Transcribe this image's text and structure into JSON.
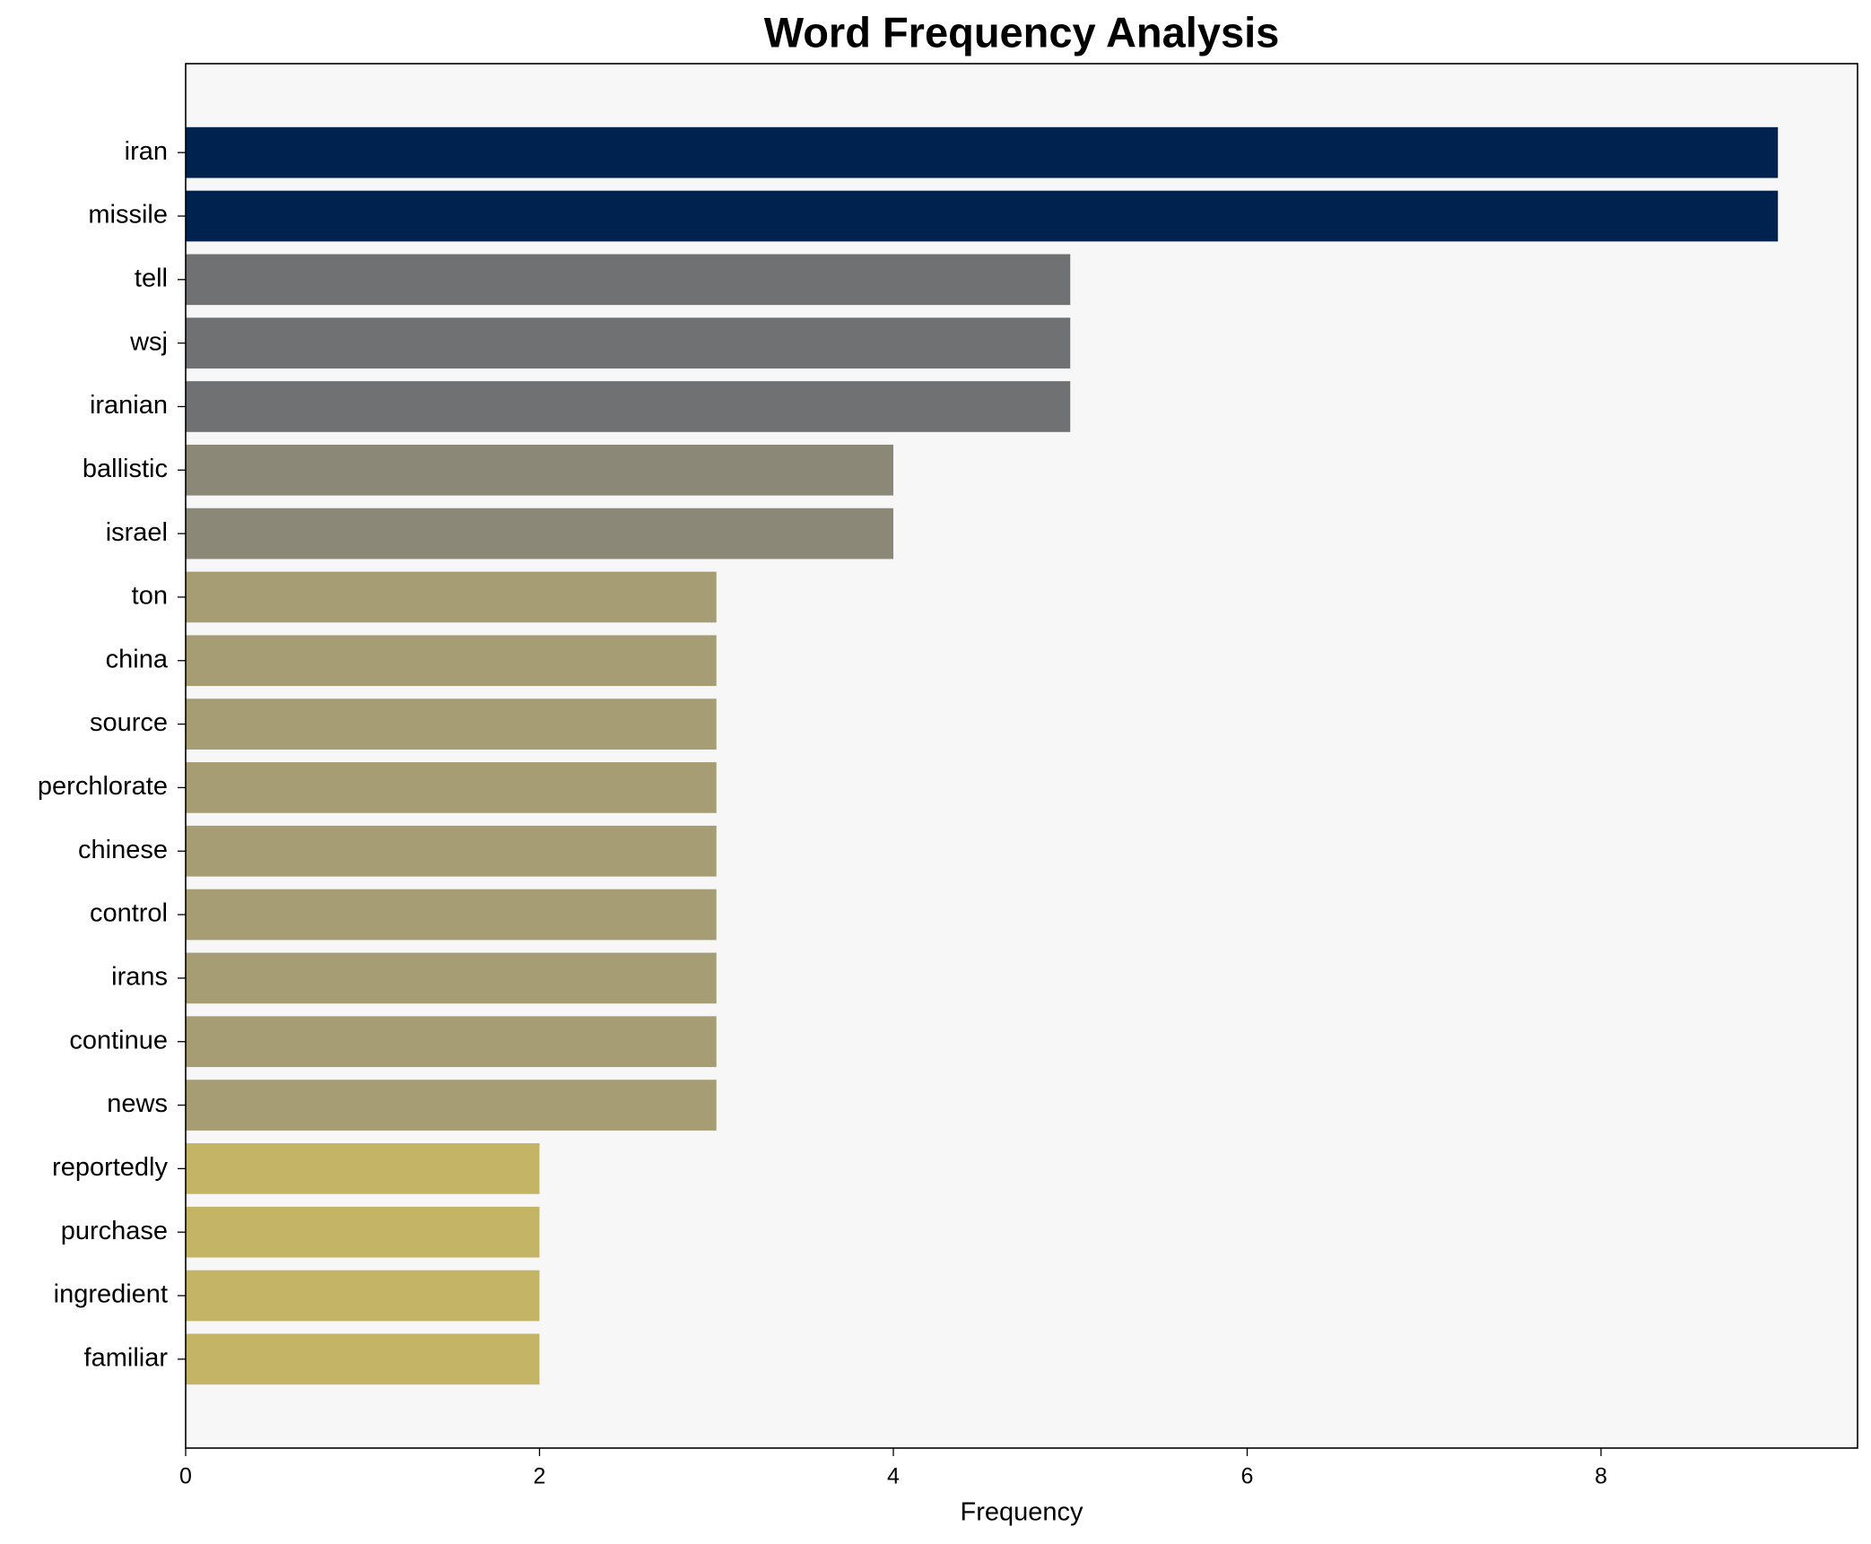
{
  "chart_data": {
    "type": "barh",
    "title": "Word Frequency Analysis",
    "xlabel": "Frequency",
    "categories": [
      "iran",
      "missile",
      "tell",
      "wsj",
      "iranian",
      "ballistic",
      "israel",
      "ton",
      "china",
      "source",
      "perchlorate",
      "chinese",
      "control",
      "irans",
      "continue",
      "news",
      "reportedly",
      "purchase",
      "ingredient",
      "familiar"
    ],
    "values": [
      9,
      9,
      5,
      5,
      5,
      4,
      4,
      3,
      3,
      3,
      3,
      3,
      3,
      3,
      3,
      3,
      2,
      2,
      2,
      2
    ],
    "colors": [
      "#00224e",
      "#00224e",
      "#707173",
      "#707173",
      "#707173",
      "#8b8878",
      "#8b8878",
      "#a69d75",
      "#a69d75",
      "#a69d75",
      "#a69d75",
      "#a69d75",
      "#a69d75",
      "#a69d75",
      "#a69d75",
      "#a69d75",
      "#c4b466",
      "#c4b466",
      "#c4b466",
      "#c4b466"
    ],
    "xlim": [
      0,
      9.45
    ],
    "xticks": [
      0,
      2,
      4,
      6,
      8
    ],
    "background": "#f7f7f7"
  }
}
